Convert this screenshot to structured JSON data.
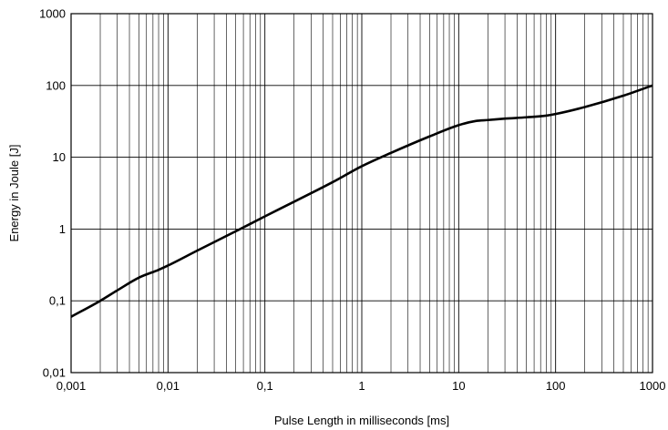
{
  "chart_data": {
    "type": "line",
    "title": "",
    "xlabel": "Pulse Length in milliseconds [ms]",
    "ylabel": "Energy in Joule [J]",
    "x_scale": "log",
    "y_scale": "log",
    "xlim": [
      0.001,
      1000
    ],
    "ylim": [
      0.01,
      1000
    ],
    "grid": true,
    "legend": "none",
    "line_color": "#000000",
    "x_tick_labels": [
      "0,001",
      "0,01",
      "0,1",
      "1",
      "10",
      "100",
      "1000"
    ],
    "y_tick_labels": [
      "0,01",
      "0,1",
      "1",
      "10",
      "100",
      "1000"
    ],
    "series": [
      {
        "x": [
          0.001,
          0.002,
          0.003,
          0.005,
          0.008,
          0.01,
          0.02,
          0.05,
          0.1,
          0.2,
          0.5,
          1,
          2,
          5,
          10,
          15,
          20,
          30,
          50,
          80,
          100,
          200,
          500,
          1000
        ],
        "y": [
          0.06,
          0.1,
          0.14,
          0.21,
          0.27,
          0.31,
          0.5,
          0.93,
          1.5,
          2.4,
          4.5,
          7.5,
          11.5,
          19.5,
          28,
          32,
          33,
          34.5,
          36,
          38,
          40,
          50,
          72,
          100
        ]
      }
    ]
  }
}
